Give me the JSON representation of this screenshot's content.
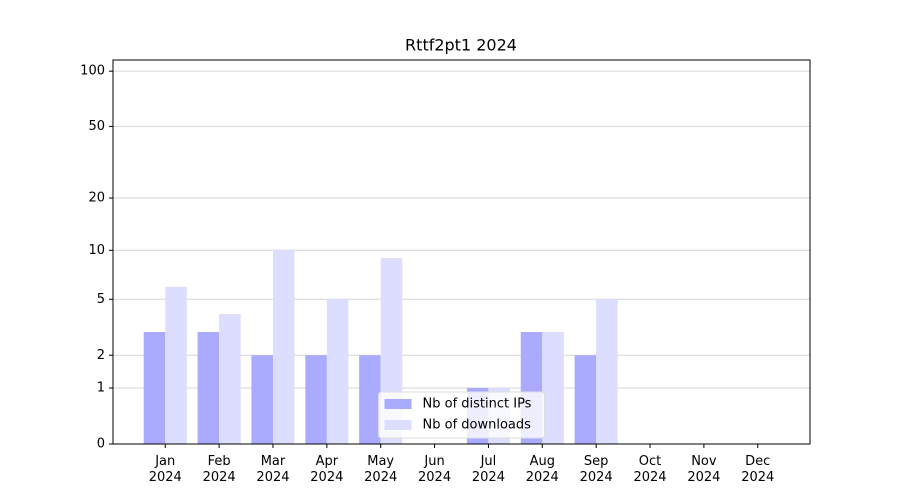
{
  "chart_data": {
    "type": "bar",
    "title": "Rttf2pt1 2024",
    "categories": [
      "Jan 2024",
      "Feb 2024",
      "Mar 2024",
      "Apr 2024",
      "May 2024",
      "Jun 2024",
      "Jul 2024",
      "Aug 2024",
      "Sep 2024",
      "Oct 2024",
      "Nov 2024",
      "Dec 2024"
    ],
    "series": [
      {
        "name": "Nb of distinct IPs",
        "color": "#aaaaff",
        "values": [
          3,
          3,
          2,
          2,
          2,
          0,
          1,
          3,
          2,
          0,
          0,
          0
        ]
      },
      {
        "name": "Nb of downloads",
        "color": "#ddddff",
        "values": [
          6,
          4,
          10,
          5,
          9,
          0,
          1,
          3,
          5,
          0,
          0,
          0
        ]
      }
    ],
    "yscale": "log1p",
    "ylim": [
      0,
      115
    ],
    "yticks": [
      0,
      1,
      2,
      5,
      10,
      20,
      50,
      100
    ],
    "grid": true,
    "legend": "lower center"
  }
}
